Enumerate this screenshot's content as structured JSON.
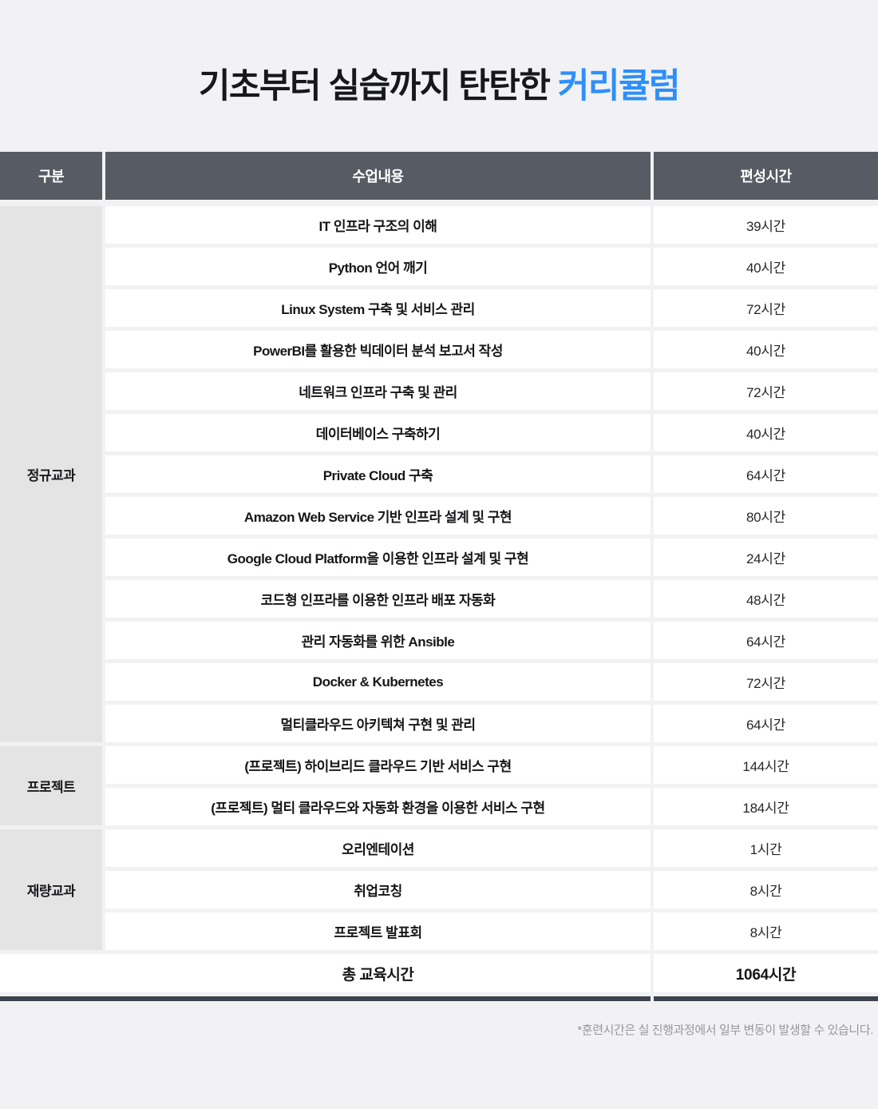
{
  "title": {
    "prefix": "기초부터 실습까지 탄탄한 ",
    "highlight": "커리큘럼",
    "highlight_color": "#2e8ff8"
  },
  "table": {
    "headers": {
      "category": "구분",
      "content": "수업내용",
      "hours": "편성시간"
    },
    "groups": [
      {
        "label": "정규교과",
        "rows": [
          {
            "content": "IT 인프라 구조의 이해",
            "hours": "39시간"
          },
          {
            "content": "Python 언어 깨기",
            "hours": "40시간"
          },
          {
            "content": "Linux System 구축 및 서비스 관리",
            "hours": "72시간"
          },
          {
            "content": "PowerBI를 활용한 빅데이터 분석 보고서 작성",
            "hours": "40시간"
          },
          {
            "content": "네트워크 인프라 구축 및 관리",
            "hours": "72시간"
          },
          {
            "content": "데이터베이스 구축하기",
            "hours": "40시간"
          },
          {
            "content": "Private Cloud 구축",
            "hours": "64시간"
          },
          {
            "content": "Amazon Web Service 기반 인프라 설계 및 구현",
            "hours": "80시간"
          },
          {
            "content": "Google Cloud Platform을 이용한 인프라 설계 및 구현",
            "hours": "24시간"
          },
          {
            "content": "코드형 인프라를 이용한 인프라 배포 자동화",
            "hours": "48시간"
          },
          {
            "content": "관리 자동화를 위한 Ansible",
            "hours": "64시간"
          },
          {
            "content": "Docker & Kubernetes",
            "hours": "72시간"
          },
          {
            "content": "멀티클라우드 아키텍쳐 구현 및 관리",
            "hours": "64시간"
          }
        ]
      },
      {
        "label": "프로젝트",
        "rows": [
          {
            "content": "(프로젝트) 하이브리드 클라우드 기반 서비스 구현",
            "hours": "144시간"
          },
          {
            "content": "(프로젝트) 멀티 클라우드와 자동화 환경을 이용한 서비스 구현",
            "hours": "184시간"
          }
        ]
      },
      {
        "label": "재량교과",
        "rows": [
          {
            "content": "오리엔테이션",
            "hours": "1시간"
          },
          {
            "content": "취업코칭",
            "hours": "8시간"
          },
          {
            "content": "프로젝트 발표회",
            "hours": "8시간"
          }
        ]
      }
    ],
    "total": {
      "label": "총 교육시간",
      "hours": "1064시간"
    }
  },
  "footnote": "*훈련시간은 실 진행과정에서 일부 변동이 발생할 수 있습니다.",
  "colors": {
    "page_background": "#f2f2f4",
    "header_background": "#565b64",
    "group_cell_background": "#e4e4e5",
    "row_background": "#ffffff",
    "accent_blue": "#2e8ff8",
    "bottom_bar": "#3d434e"
  }
}
